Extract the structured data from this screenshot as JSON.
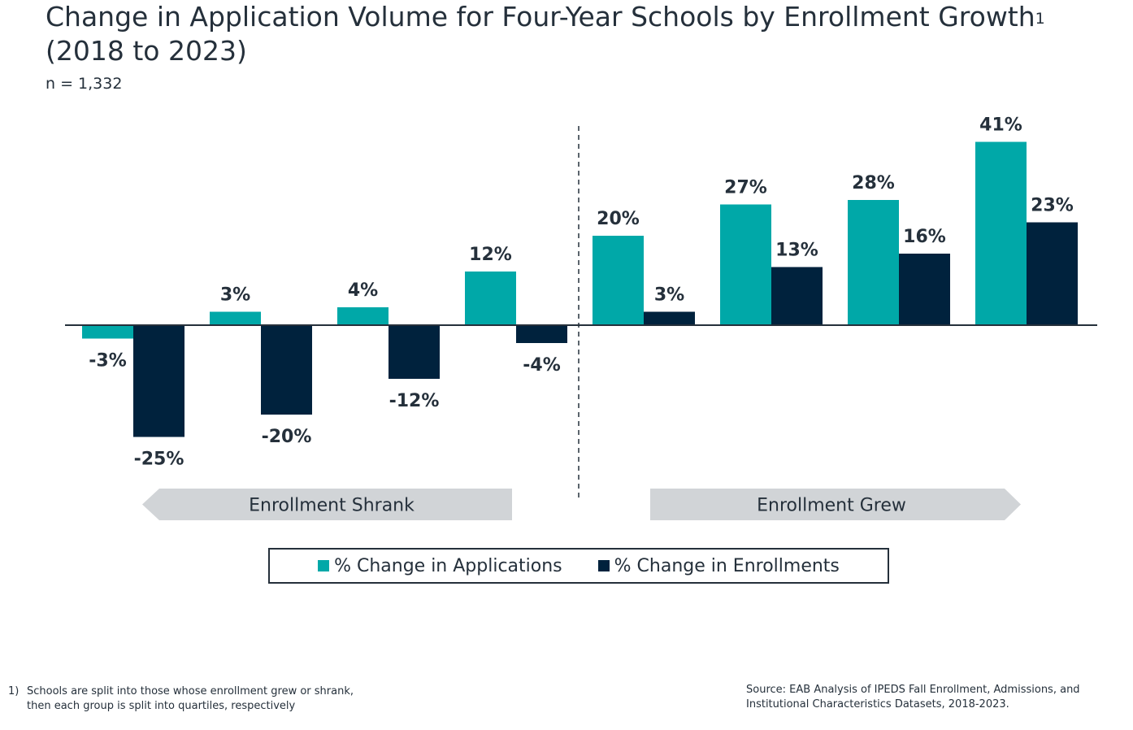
{
  "title": "Change in Application Volume for Four-Year Schools by Enrollment Growth",
  "title_superscript": "1",
  "title_line2": "(2018 to 2023)",
  "subtitle": "n = 1,332",
  "colors": {
    "applications": "#00a8a8",
    "enrollments": "#00223d",
    "arrow": "#d1d4d7",
    "text": "#25303b"
  },
  "chart_data": {
    "type": "bar",
    "categories": [
      "",
      "",
      "",
      "",
      "",
      "",
      "",
      ""
    ],
    "series": [
      {
        "name": "% Change in Applications",
        "values": [
          -3,
          3,
          4,
          12,
          20,
          27,
          28,
          41
        ],
        "labels": [
          "-3%",
          "3%",
          "4%",
          "12%",
          "20%",
          "27%",
          "28%",
          "41%"
        ]
      },
      {
        "name": "% Change in Enrollments",
        "values": [
          -25,
          -20,
          -12,
          -4,
          3,
          13,
          16,
          23
        ],
        "labels": [
          "-25%",
          "-20%",
          "-12%",
          "-4%",
          "3%",
          "13%",
          "16%",
          "23%"
        ]
      }
    ],
    "ylim": [
      -30,
      45
    ],
    "grid": false,
    "legend": "bottom",
    "groups": [
      {
        "label": "Enrollment Shrank",
        "direction": "left"
      },
      {
        "label": "Enrollment Grew",
        "direction": "right"
      }
    ]
  },
  "footnote": {
    "number": "1)",
    "text": "Schools are split into those whose enrollment grew or shrank, then each group is split into quartiles, respectively"
  },
  "source": "Source: EAB Analysis of IPEDS Fall Enrollment, Admissions, and Institutional Characteristics Datasets, 2018-2023."
}
